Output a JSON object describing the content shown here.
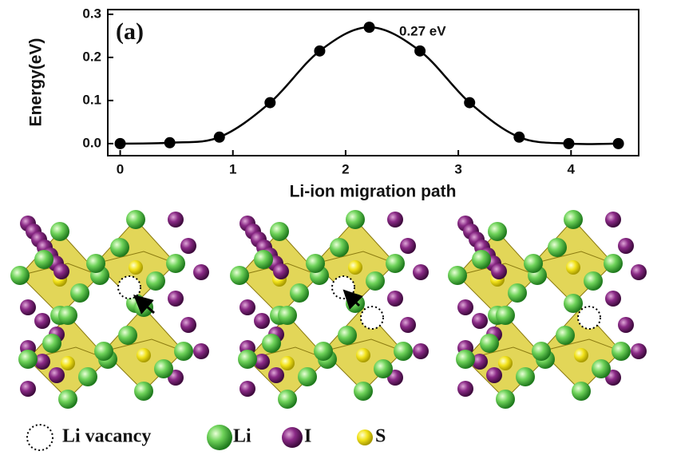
{
  "chart_data": {
    "type": "line",
    "panel_label": "(a)",
    "annotation": "0.27 eV",
    "xlabel": "Li-ion migration path",
    "ylabel": "Energy(eV)",
    "x": [
      0,
      0.44,
      0.88,
      1.33,
      1.77,
      2.21,
      2.66,
      3.1,
      3.54,
      3.98,
      4.42
    ],
    "values": [
      0,
      0.002,
      0.015,
      0.095,
      0.215,
      0.27,
      0.215,
      0.095,
      0.015,
      0,
      0
    ],
    "color": "#000000",
    "markers": true,
    "xlim": [
      -0.11,
      4.6
    ],
    "ylim": [
      -0.028,
      0.311
    ],
    "xticks": [
      0,
      1,
      2,
      3,
      4
    ],
    "yticks": [
      {
        "value": 0,
        "label": "0.0"
      },
      {
        "value": 0.1,
        "label": "0.1"
      },
      {
        "value": 0.2,
        "label": "0.2"
      },
      {
        "value": 0.3,
        "label": "0.3"
      }
    ]
  },
  "structure_legend": {
    "vacancy": "Li vacancy",
    "li": "Li",
    "i": "I",
    "s": "S"
  }
}
